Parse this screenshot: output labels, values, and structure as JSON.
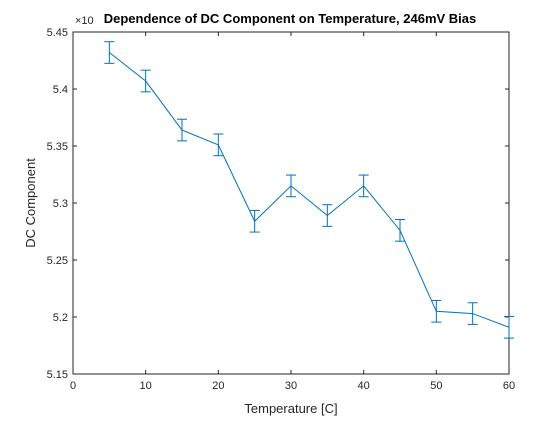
{
  "chart_data": {
    "type": "line",
    "title": "Dependence of DC Component on Temperature, 246mV Bias",
    "xlabel": "Temperature [C]",
    "ylabel": "DC Component",
    "xlim": [
      0,
      60
    ],
    "ylim": [
      5.15,
      5.45
    ],
    "y_exponent_label": "×10",
    "x_ticks": [
      "0",
      "10",
      "20",
      "30",
      "40",
      "50",
      "60"
    ],
    "y_ticks": [
      "5.15",
      "5.2",
      "5.25",
      "5.3",
      "5.35",
      "5.4",
      "5.45"
    ],
    "grid": false,
    "series": [
      {
        "x": [
          5,
          10,
          15,
          20,
          25,
          30,
          35,
          40,
          45,
          50,
          55,
          60
        ],
        "y": [
          5.432,
          5.407,
          5.364,
          5.351,
          5.284,
          5.315,
          5.289,
          5.315,
          5.276,
          5.205,
          5.203,
          5.191
        ],
        "error": [
          0.0095,
          0.0095,
          0.0095,
          0.0095,
          0.0095,
          0.0095,
          0.0095,
          0.0095,
          0.0095,
          0.0095,
          0.0095,
          0.0095
        ],
        "color": "#0072bd"
      }
    ]
  }
}
